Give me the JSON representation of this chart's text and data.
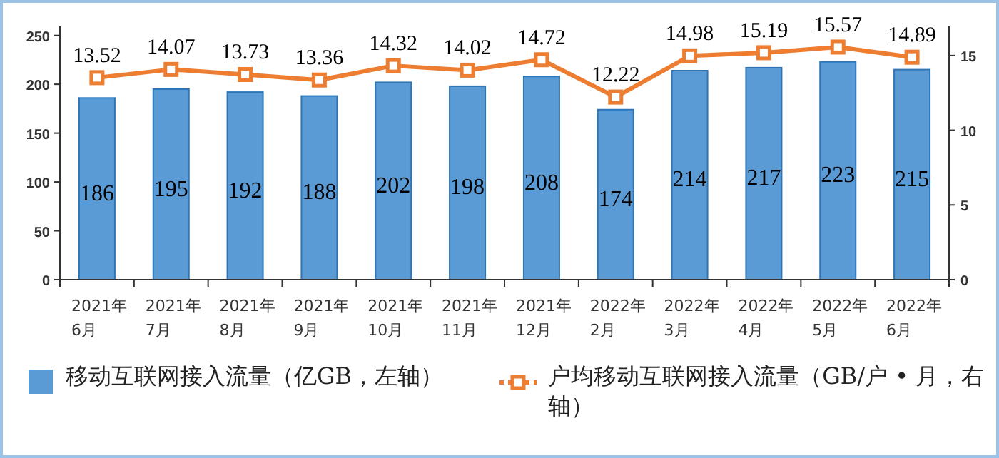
{
  "chart_data": {
    "type": "bar",
    "categories": [
      "2021年\n6月",
      "2021年\n7月",
      "2021年\n8月",
      "2021年\n9月",
      "2021年\n10月",
      "2021年\n11月",
      "2021年\n12月",
      "2022年\n2月",
      "2022年\n3月",
      "2022年\n4月",
      "2022年\n5月",
      "2022年\n6月"
    ],
    "series": [
      {
        "name": "移动互联网接入流量（亿GB，左轴）",
        "color": "#5b9bd5",
        "values": [
          186,
          195,
          192,
          188,
          202,
          198,
          208,
          174,
          214,
          217,
          223,
          215
        ]
      },
      {
        "name": "户均移动互联网接入流量（GB/户 • 月，右轴）",
        "type": "line",
        "axis": "y2",
        "color": "#ed7d31",
        "marker": "square",
        "values": [
          13.52,
          14.07,
          13.73,
          13.36,
          14.32,
          14.02,
          14.72,
          12.22,
          14.98,
          15.19,
          15.57,
          14.89
        ]
      }
    ],
    "ylim": [
      0,
      260
    ],
    "yticks": [
      0,
      50,
      100,
      150,
      200,
      250
    ],
    "y2lim": [
      0,
      17
    ],
    "y2ticks": [
      0,
      5,
      10,
      15
    ],
    "data_labels": true,
    "legend": "bottom",
    "grid": false
  }
}
